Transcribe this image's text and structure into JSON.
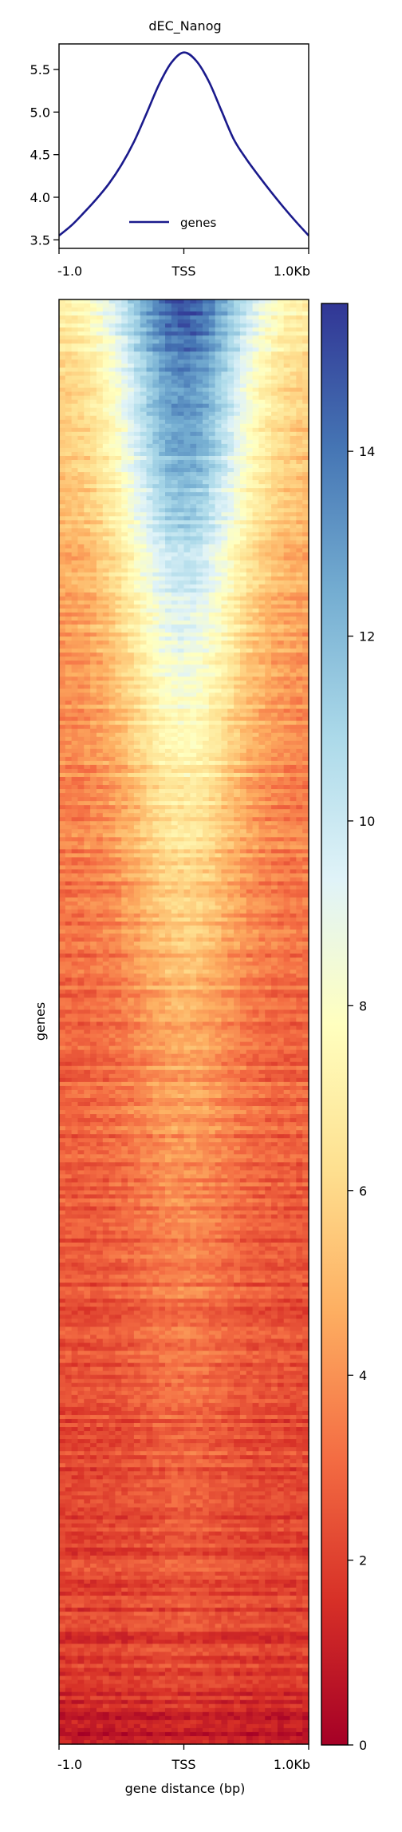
{
  "chart_data": [
    {
      "type": "line",
      "title": "dEC_Nanog",
      "xlabel": "",
      "ylabel": "",
      "xlim": [
        -1000,
        1000
      ],
      "ylim": [
        3.4,
        5.8
      ],
      "x_ticks": [
        {
          "value": -1000,
          "label": "-1.0"
        },
        {
          "value": 0,
          "label": "TSS"
        },
        {
          "value": 1000,
          "label": "1.0Kb"
        }
      ],
      "y_ticks": [
        {
          "value": 3.5,
          "label": "3.5"
        },
        {
          "value": 4.0,
          "label": "4.0"
        },
        {
          "value": 4.5,
          "label": "4.5"
        },
        {
          "value": 5.0,
          "label": "5.0"
        },
        {
          "value": 5.5,
          "label": "5.5"
        }
      ],
      "legend": {
        "position": "bottom-center",
        "entries": [
          "genes"
        ]
      },
      "grid": false,
      "series": [
        {
          "name": "genes",
          "color": "#1a1a8c",
          "x": [
            -1000,
            -900,
            -800,
            -700,
            -600,
            -500,
            -400,
            -300,
            -200,
            -100,
            0,
            100,
            200,
            300,
            400,
            500,
            600,
            700,
            800,
            900,
            1000
          ],
          "y": [
            3.55,
            3.67,
            3.82,
            3.98,
            4.16,
            4.38,
            4.65,
            4.98,
            5.32,
            5.58,
            5.7,
            5.6,
            5.36,
            5.02,
            4.68,
            4.45,
            4.25,
            4.06,
            3.88,
            3.71,
            3.55
          ]
        }
      ]
    },
    {
      "type": "heatmap",
      "title": "",
      "xlabel": "gene distance (bp)",
      "ylabel": "genes",
      "xlim": [
        -1000,
        1000
      ],
      "x_ticks": [
        {
          "value": -1000,
          "label": "-1.0"
        },
        {
          "value": 0,
          "label": "TSS"
        },
        {
          "value": 1000,
          "label": "1.0Kb"
        }
      ],
      "colormap": "RdYlBu",
      "colormap_stops": [
        "#a50026",
        "#d73027",
        "#f46d43",
        "#fdae61",
        "#fee090",
        "#ffffbf",
        "#e0f3f8",
        "#abd9e9",
        "#74add1",
        "#4575b4",
        "#313695"
      ],
      "value_range": [
        0,
        15.6
      ],
      "colorbar_ticks": [
        {
          "value": 0,
          "label": "0"
        },
        {
          "value": 2,
          "label": "2"
        },
        {
          "value": 4,
          "label": "4"
        },
        {
          "value": 6,
          "label": "6"
        },
        {
          "value": 8,
          "label": "8"
        },
        {
          "value": 10,
          "label": "10"
        },
        {
          "value": 12,
          "label": "12"
        },
        {
          "value": 14,
          "label": "14"
        }
      ],
      "rows_sorted": "descending",
      "row_profile": {
        "row_fraction": [
          0,
          0.05,
          0.1,
          0.2,
          0.3,
          0.4,
          0.5,
          0.6,
          0.7,
          0.8,
          0.9,
          0.96,
          1.0
        ],
        "center_value": [
          15.0,
          13.6,
          12.6,
          9.8,
          7.6,
          6.0,
          4.8,
          4.0,
          3.4,
          2.9,
          2.4,
          2.0,
          0.8
        ],
        "edge_value": [
          6.8,
          5.8,
          5.2,
          4.4,
          3.8,
          3.3,
          3.0,
          2.7,
          2.4,
          2.2,
          2.0,
          1.7,
          0.6
        ]
      }
    }
  ]
}
